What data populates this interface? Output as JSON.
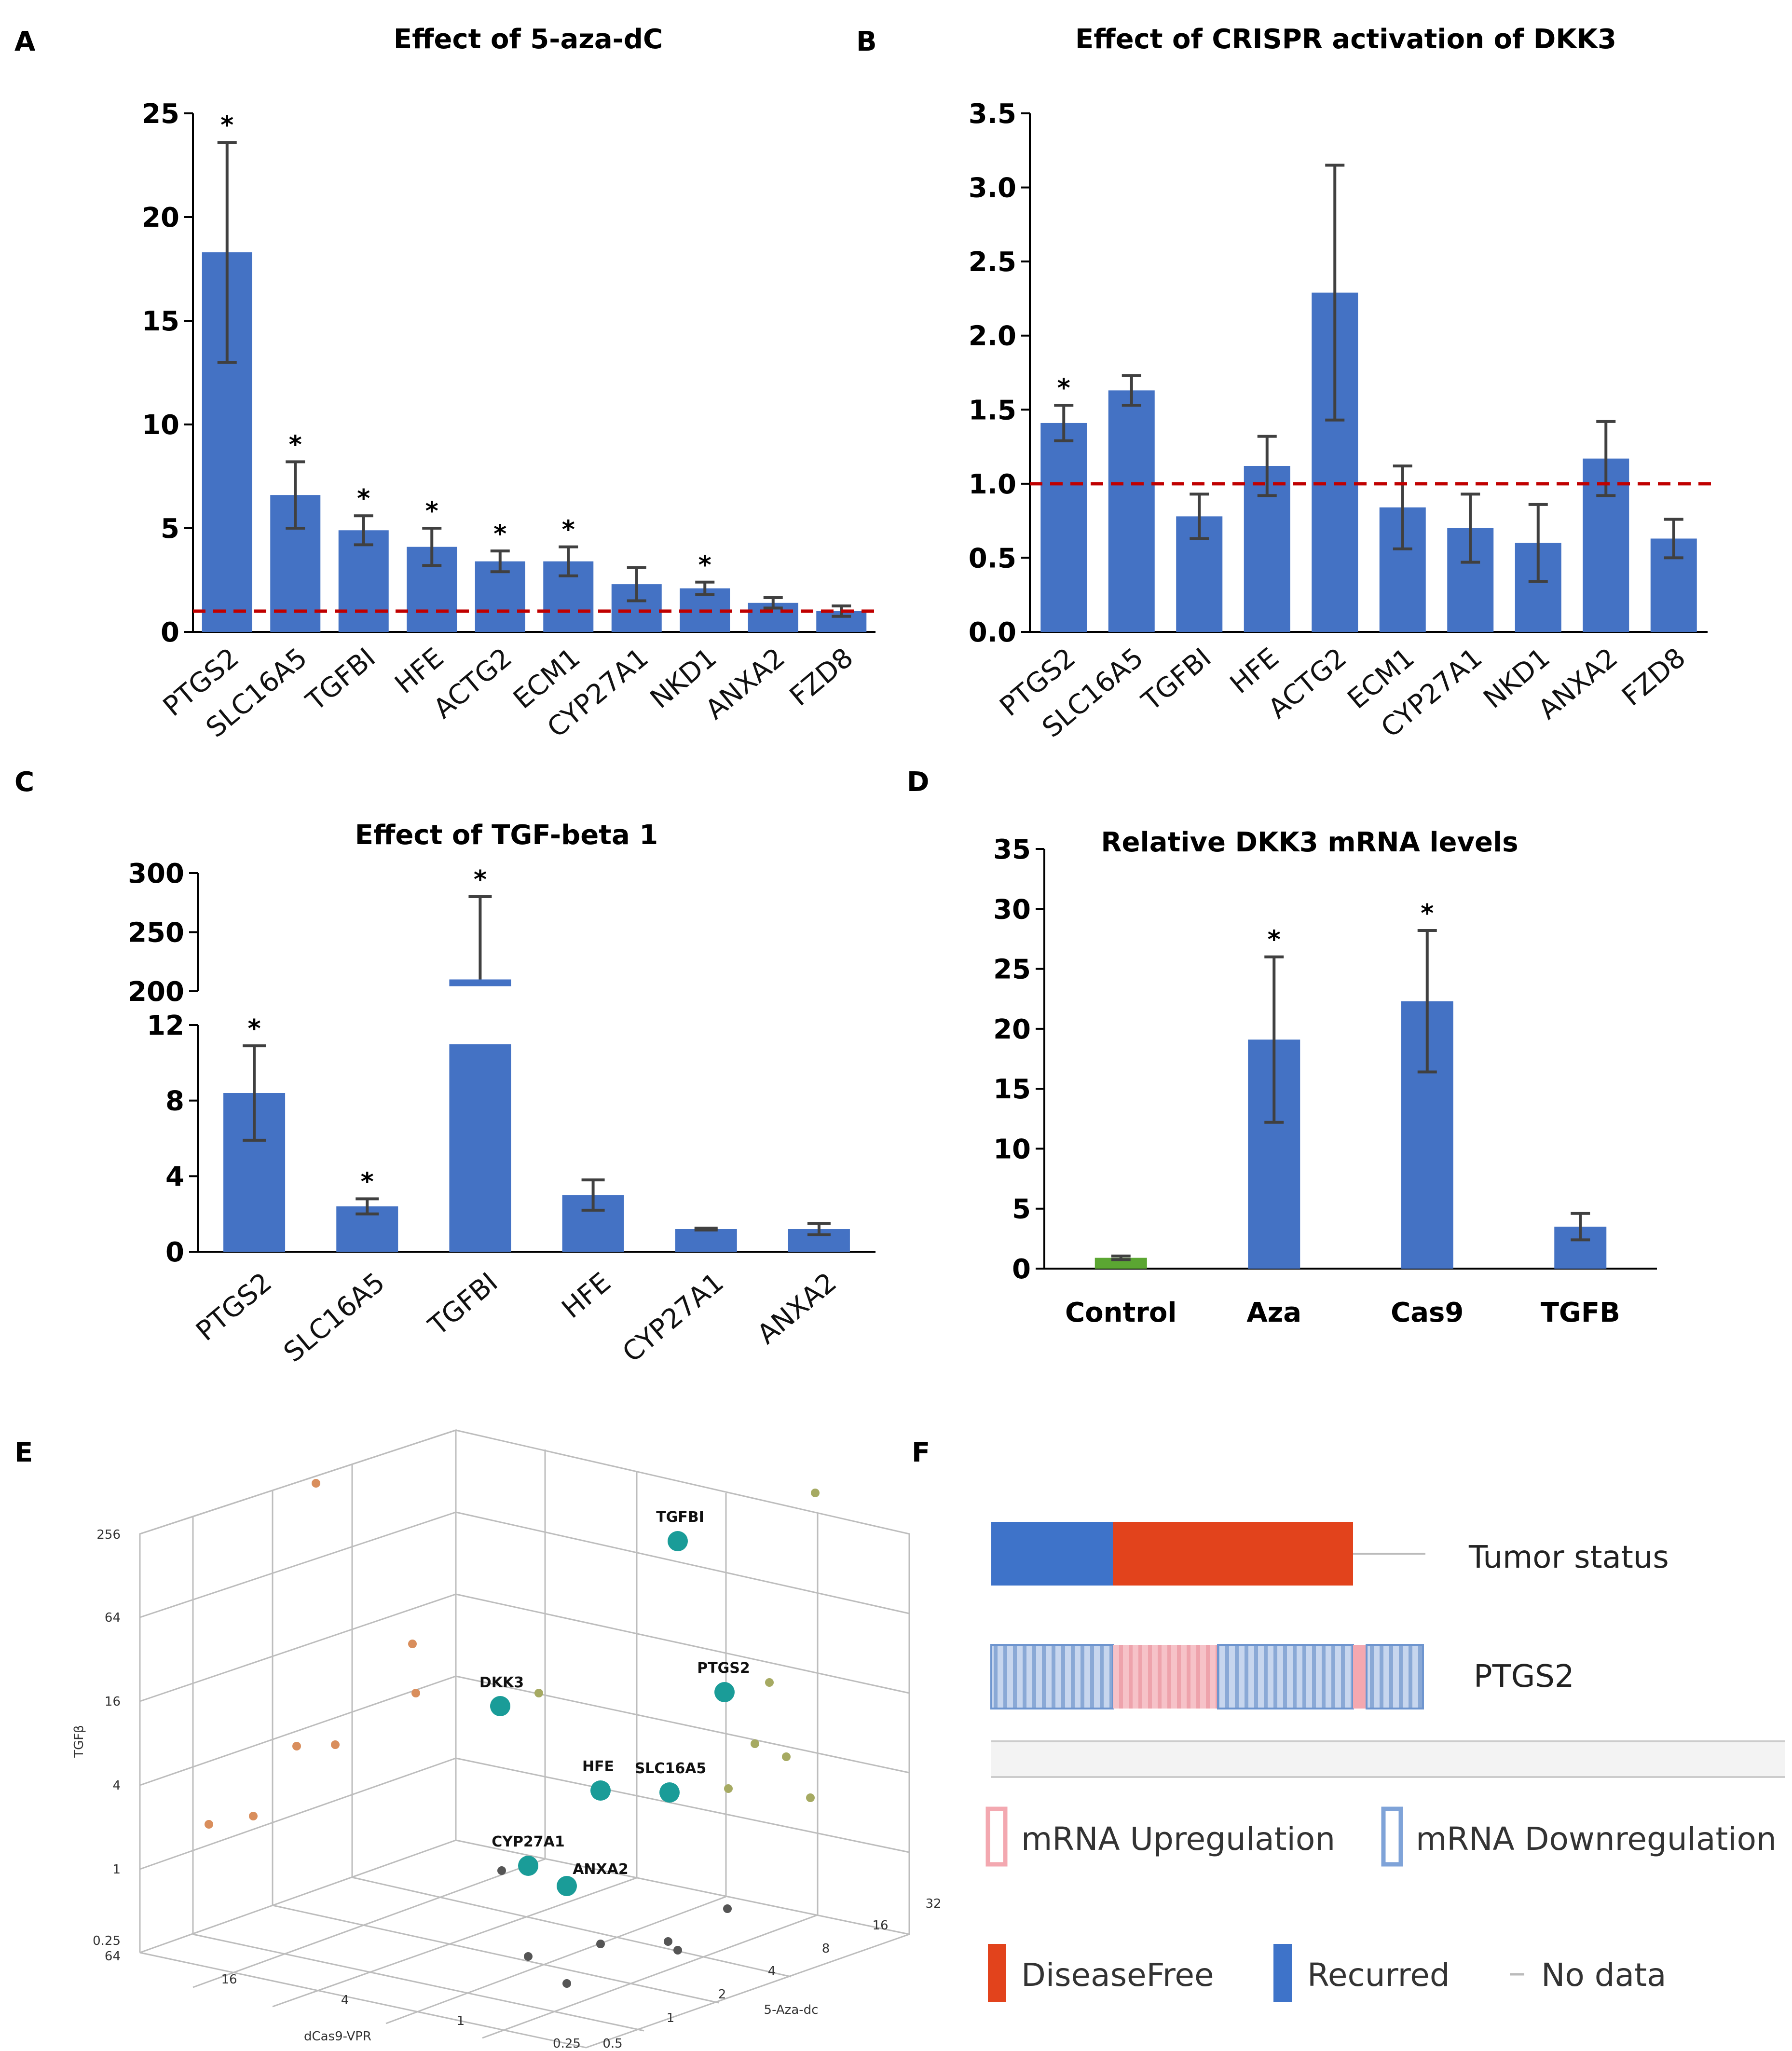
{
  "colors": {
    "bar": "#4472C4",
    "control_bar": "#5BA632",
    "reference_line": "#C00000",
    "error_bar": "#404040",
    "axis": "#000000",
    "scatter_large": "#1A9C98",
    "scatter_orange": "#D98E5C",
    "scatter_olive": "#A6AA62",
    "scatter_gray": "#555555",
    "track_blue": "#3E73C9",
    "track_red": "#E2431C",
    "track_light_blue": "#9DB8DF",
    "track_pink": "#F3A8B0"
  },
  "significance_marker": "*",
  "chart_data": [
    {
      "panel": "A",
      "type": "bar",
      "title": "Effect of 5-aza-dC",
      "categories": [
        "PTGS2",
        "SLC16A5",
        "TGFBI",
        "HFE",
        "ACTG2",
        "ECM1",
        "CYP27A1",
        "NKD1",
        "ANXA2",
        "FZD8"
      ],
      "values": [
        18.3,
        6.6,
        4.9,
        4.1,
        3.4,
        3.4,
        2.3,
        2.1,
        1.4,
        1.0
      ],
      "errors": [
        5.3,
        1.6,
        0.7,
        0.9,
        0.5,
        0.7,
        0.8,
        0.3,
        0.25,
        0.25
      ],
      "significant": [
        true,
        true,
        true,
        true,
        true,
        true,
        false,
        true,
        false,
        false
      ],
      "ylim": [
        0,
        25
      ],
      "yticks": [
        "0",
        "5",
        "10",
        "15",
        "20",
        "25"
      ],
      "reference_line": 1,
      "xlabel": "",
      "ylabel": ""
    },
    {
      "panel": "B",
      "type": "bar",
      "title": "Effect of CRISPR activation of DKK3",
      "categories": [
        "PTGS2",
        "SLC16A5",
        "TGFBI",
        "HFE",
        "ACTG2",
        "ECM1",
        "CYP27A1",
        "NKD1",
        "ANXA2",
        "FZD8"
      ],
      "values": [
        1.41,
        1.63,
        0.78,
        1.12,
        2.29,
        0.84,
        0.7,
        0.6,
        1.17,
        0.63
      ],
      "errors": [
        0.12,
        0.1,
        0.15,
        0.2,
        0.86,
        0.28,
        0.23,
        0.26,
        0.25,
        0.13
      ],
      "significant": [
        true,
        false,
        false,
        false,
        false,
        false,
        false,
        false,
        false,
        false
      ],
      "ylim": [
        0,
        3.5
      ],
      "yticks": [
        "0.0",
        "0.5",
        "1.0",
        "1.5",
        "2.0",
        "2.5",
        "3.0",
        "3.5"
      ],
      "reference_line": 1,
      "xlabel": "",
      "ylabel": ""
    },
    {
      "panel": "C",
      "type": "bar",
      "title": "Effect of TGF-beta 1",
      "categories": [
        "PTGS2",
        "SLC16A5",
        "TGFBI",
        "HFE",
        "CYP27A1",
        "ANXA2"
      ],
      "values": [
        8.4,
        2.4,
        210,
        3.0,
        1.2,
        1.2
      ],
      "errors": [
        2.5,
        0.4,
        70,
        0.8,
        0.05,
        0.3
      ],
      "significant": [
        true,
        true,
        true,
        false,
        false,
        false
      ],
      "axis_break": [
        12,
        200
      ],
      "ylim": [
        0,
        300
      ],
      "yticks_lower": [
        "0",
        "4",
        "8",
        "12"
      ],
      "yticks_upper": [
        "200",
        "250",
        "300"
      ],
      "xlabel": "",
      "ylabel": ""
    },
    {
      "panel": "D",
      "type": "bar",
      "title": "Relative DKK3 mRNA levels",
      "categories": [
        "Control",
        "Aza",
        "Cas9",
        "TGFB"
      ],
      "values": [
        0.9,
        19.1,
        22.3,
        3.5
      ],
      "errors": [
        0.15,
        6.9,
        5.9,
        1.1
      ],
      "significant": [
        false,
        true,
        true,
        false
      ],
      "ylim": [
        0,
        35
      ],
      "yticks": [
        "0",
        "5",
        "10",
        "15",
        "20",
        "25",
        "30",
        "35"
      ],
      "xlabel": "",
      "ylabel": ""
    },
    {
      "panel": "E",
      "type": "scatter",
      "title": "",
      "xlabel": "dCas9-VPR",
      "ylabel": "5-Aza-dc",
      "zlabel": "TGFβ",
      "scale": "log2",
      "x_ticks": [
        "64",
        "16",
        "4",
        "1",
        "0.25"
      ],
      "y_ticks": [
        "0.5",
        "1",
        "2",
        "4",
        "8",
        "16",
        "32"
      ],
      "z_ticks": [
        "0.25",
        "1",
        "4",
        "16",
        "64",
        "256"
      ],
      "labeled_points": [
        {
          "label": "TGFBI",
          "dcas9": 0.78,
          "aza": 4.9,
          "tgfb": 210
        },
        {
          "label": "PTGS2",
          "dcas9": 1.41,
          "aza": 18.3,
          "tgfb": 8.4
        },
        {
          "label": "DKK3",
          "dcas9": 22.3,
          "aza": 19.1,
          "tgfb": 3.5
        },
        {
          "label": "HFE",
          "dcas9": 1.12,
          "aza": 4.1,
          "tgfb": 3.0
        },
        {
          "label": "SLC16A5",
          "dcas9": 1.63,
          "aza": 6.6,
          "tgfb": 2.4
        },
        {
          "label": "CYP27A1",
          "dcas9": 0.7,
          "aza": 2.3,
          "tgfb": 1.2
        },
        {
          "label": "ANXA2",
          "dcas9": 1.17,
          "aza": 1.4,
          "tgfb": 1.2
        }
      ]
    }
  ],
  "panel_f": {
    "tracks": [
      {
        "label": "Tumor status",
        "segments": [
          {
            "status": "Recurred",
            "fraction": 0.34
          },
          {
            "status": "DiseaseFree",
            "fraction": 0.66
          }
        ]
      },
      {
        "label": "PTGS2",
        "segments": [
          {
            "status": "mRNA Downregulation",
            "fraction": 0.28
          },
          {
            "status": "mRNA Upregulation",
            "fraction": 0.25
          },
          {
            "status": "mRNA Downregulation",
            "fraction": 0.31
          },
          {
            "status": "mRNA Upregulation",
            "fraction": 0.03
          },
          {
            "status": "mRNA Downregulation",
            "fraction": 0.13
          }
        ]
      }
    ],
    "legend": {
      "mrna_up": "mRNA Upregulation",
      "mrna_down": "mRNA Downregulation",
      "disease_free": "DiseaseFree",
      "recurred": "Recurred",
      "no_data": "No data"
    }
  },
  "panel_labels": {
    "a": "A",
    "b": "B",
    "c": "C",
    "d": "D",
    "e": "E",
    "f": "F"
  }
}
